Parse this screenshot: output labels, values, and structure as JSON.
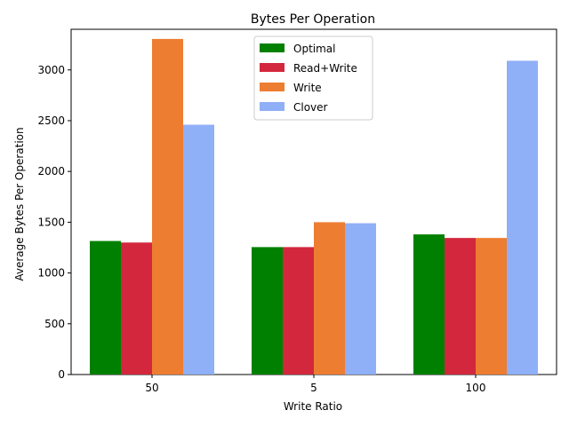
{
  "chart_data": {
    "type": "bar",
    "title": "Bytes Per Operation",
    "xlabel": "Write Ratio",
    "ylabel": "Average Bytes Per Operation",
    "categories": [
      "50",
      "5",
      "100"
    ],
    "ylim": [
      0,
      3400
    ],
    "yticks": [
      0,
      500,
      1000,
      1500,
      2000,
      2500,
      3000
    ],
    "grid": false,
    "legend_position": "top-center",
    "series": [
      {
        "name": "Optimal",
        "color": "#008000",
        "values": [
          1315,
          1255,
          1380
        ]
      },
      {
        "name": "Read+Write",
        "color": "#d2273d",
        "values": [
          1300,
          1255,
          1345
        ]
      },
      {
        "name": "Write",
        "color": "#ed7d31",
        "values": [
          3305,
          1500,
          1345
        ]
      },
      {
        "name": "Clover",
        "color": "#8faff7",
        "values": [
          2460,
          1490,
          3090
        ]
      }
    ]
  }
}
